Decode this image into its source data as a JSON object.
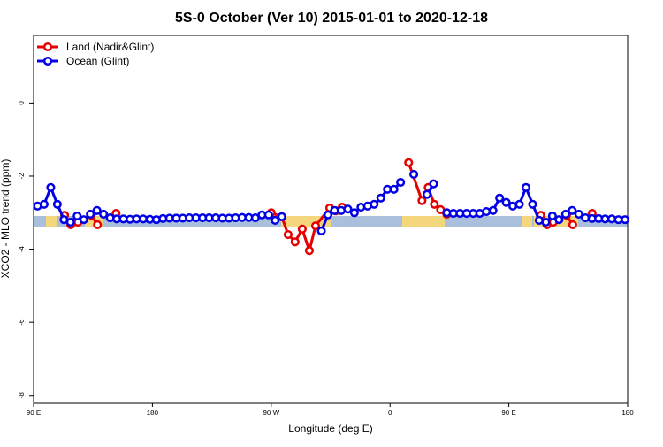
{
  "chart_data": {
    "type": "line",
    "title": "5S-0 October (Ver 10)   2015-01-01 to 2020-12-18",
    "x_label": "Longitude (deg E)",
    "y_label": "XCO2 - MLO trend (ppm)",
    "xlim": [
      90,
      540
    ],
    "xticks": [
      {
        "value": 90,
        "label": "90 E"
      },
      {
        "value": 180,
        "label": "180"
      },
      {
        "value": 270,
        "label": "90 W"
      },
      {
        "value": 360,
        "label": "0"
      },
      {
        "value": 450,
        "label": "90 E"
      },
      {
        "value": 540,
        "label": "180"
      }
    ],
    "ylim": [
      -8.2,
      1.85
    ],
    "yticks": [
      0,
      -2,
      -4,
      -6,
      -8
    ],
    "legend": "top-left",
    "series": [
      {
        "name": "Land (Nadir&Glint)",
        "color": "#e60000",
        "x": [
          113.5,
          118.2,
          123.6,
          128,
          133.7,
          138.4,
          145,
          152.5,
          200,
          270,
          278,
          282.8,
          288.1,
          293.5,
          298.9,
          303.6,
          314.3,
          319,
          323.7,
          350,
          374.1,
          384.2,
          388.9,
          393.6,
          398.3,
          403,
          440,
          474.2,
          478.9,
          483.6,
          488,
          493.7,
          498.4,
          505,
          513.1
        ],
        "values": [
          -3.07,
          -3.33,
          -3.26,
          null,
          -3.07,
          -3.33,
          null,
          -3.02,
          null,
          -3.0,
          -3.11,
          -3.6,
          -3.8,
          -3.45,
          -4.04,
          -3.36,
          -2.87,
          -2.95,
          -2.85,
          null,
          -1.63,
          -2.67,
          -2.31,
          -2.77,
          -2.92,
          -3.04,
          null,
          -3.07,
          -3.33,
          -3.26,
          null,
          -3.07,
          -3.33,
          null,
          -3.02
        ]
      },
      {
        "name": "Ocean (Glint)",
        "color": "#0000e6",
        "x": [
          93,
          98,
          103,
          108,
          113,
          118,
          123,
          128,
          133,
          138,
          143,
          148,
          153,
          158,
          163,
          168,
          173,
          178,
          183,
          188,
          193,
          198,
          203,
          208,
          213,
          218,
          223,
          228,
          233,
          238,
          243,
          248,
          253,
          258,
          263,
          268,
          273,
          278,
          283,
          288,
          293,
          298,
          303,
          308,
          313,
          318,
          323,
          328,
          333,
          338,
          343,
          348,
          353,
          358,
          363,
          368,
          373,
          378,
          383,
          388,
          393,
          398,
          403,
          408,
          413,
          418,
          423,
          428,
          433,
          438,
          443,
          448,
          453,
          458,
          463,
          468,
          473,
          478,
          483,
          488,
          493,
          498,
          503,
          508,
          513,
          518,
          523,
          528,
          533,
          538
        ],
        "values": [
          -2.82,
          -2.77,
          -2.31,
          -2.77,
          -3.19,
          -3.26,
          -3.09,
          -3.19,
          -3.04,
          -2.94,
          -3.04,
          -3.14,
          -3.17,
          -3.17,
          -3.18,
          -3.17,
          -3.17,
          -3.18,
          -3.19,
          -3.16,
          -3.15,
          -3.15,
          -3.15,
          -3.14,
          -3.14,
          -3.14,
          -3.14,
          -3.14,
          -3.15,
          -3.15,
          -3.14,
          -3.13,
          -3.13,
          -3.14,
          -3.06,
          -3.06,
          -3.21,
          -3.11,
          null,
          null,
          null,
          null,
          null,
          -3.5,
          -3.06,
          -2.94,
          -2.94,
          -2.9,
          -3.0,
          -2.85,
          -2.82,
          -2.77,
          -2.6,
          -2.36,
          -2.36,
          -2.17,
          null,
          -1.95,
          null,
          -2.5,
          -2.21,
          null,
          -3.0,
          -3.02,
          -3.02,
          -3.02,
          -3.02,
          -3.02,
          -2.97,
          -2.94,
          -2.6,
          -2.72,
          -2.82,
          -2.77,
          -2.31,
          -2.77,
          -3.21,
          -3.26,
          -3.09,
          -3.19,
          -3.04,
          -2.94,
          -3.04,
          -3.14,
          -3.16,
          -3.16,
          -3.17,
          -3.17,
          -3.19,
          -3.19
        ]
      }
    ]
  }
}
